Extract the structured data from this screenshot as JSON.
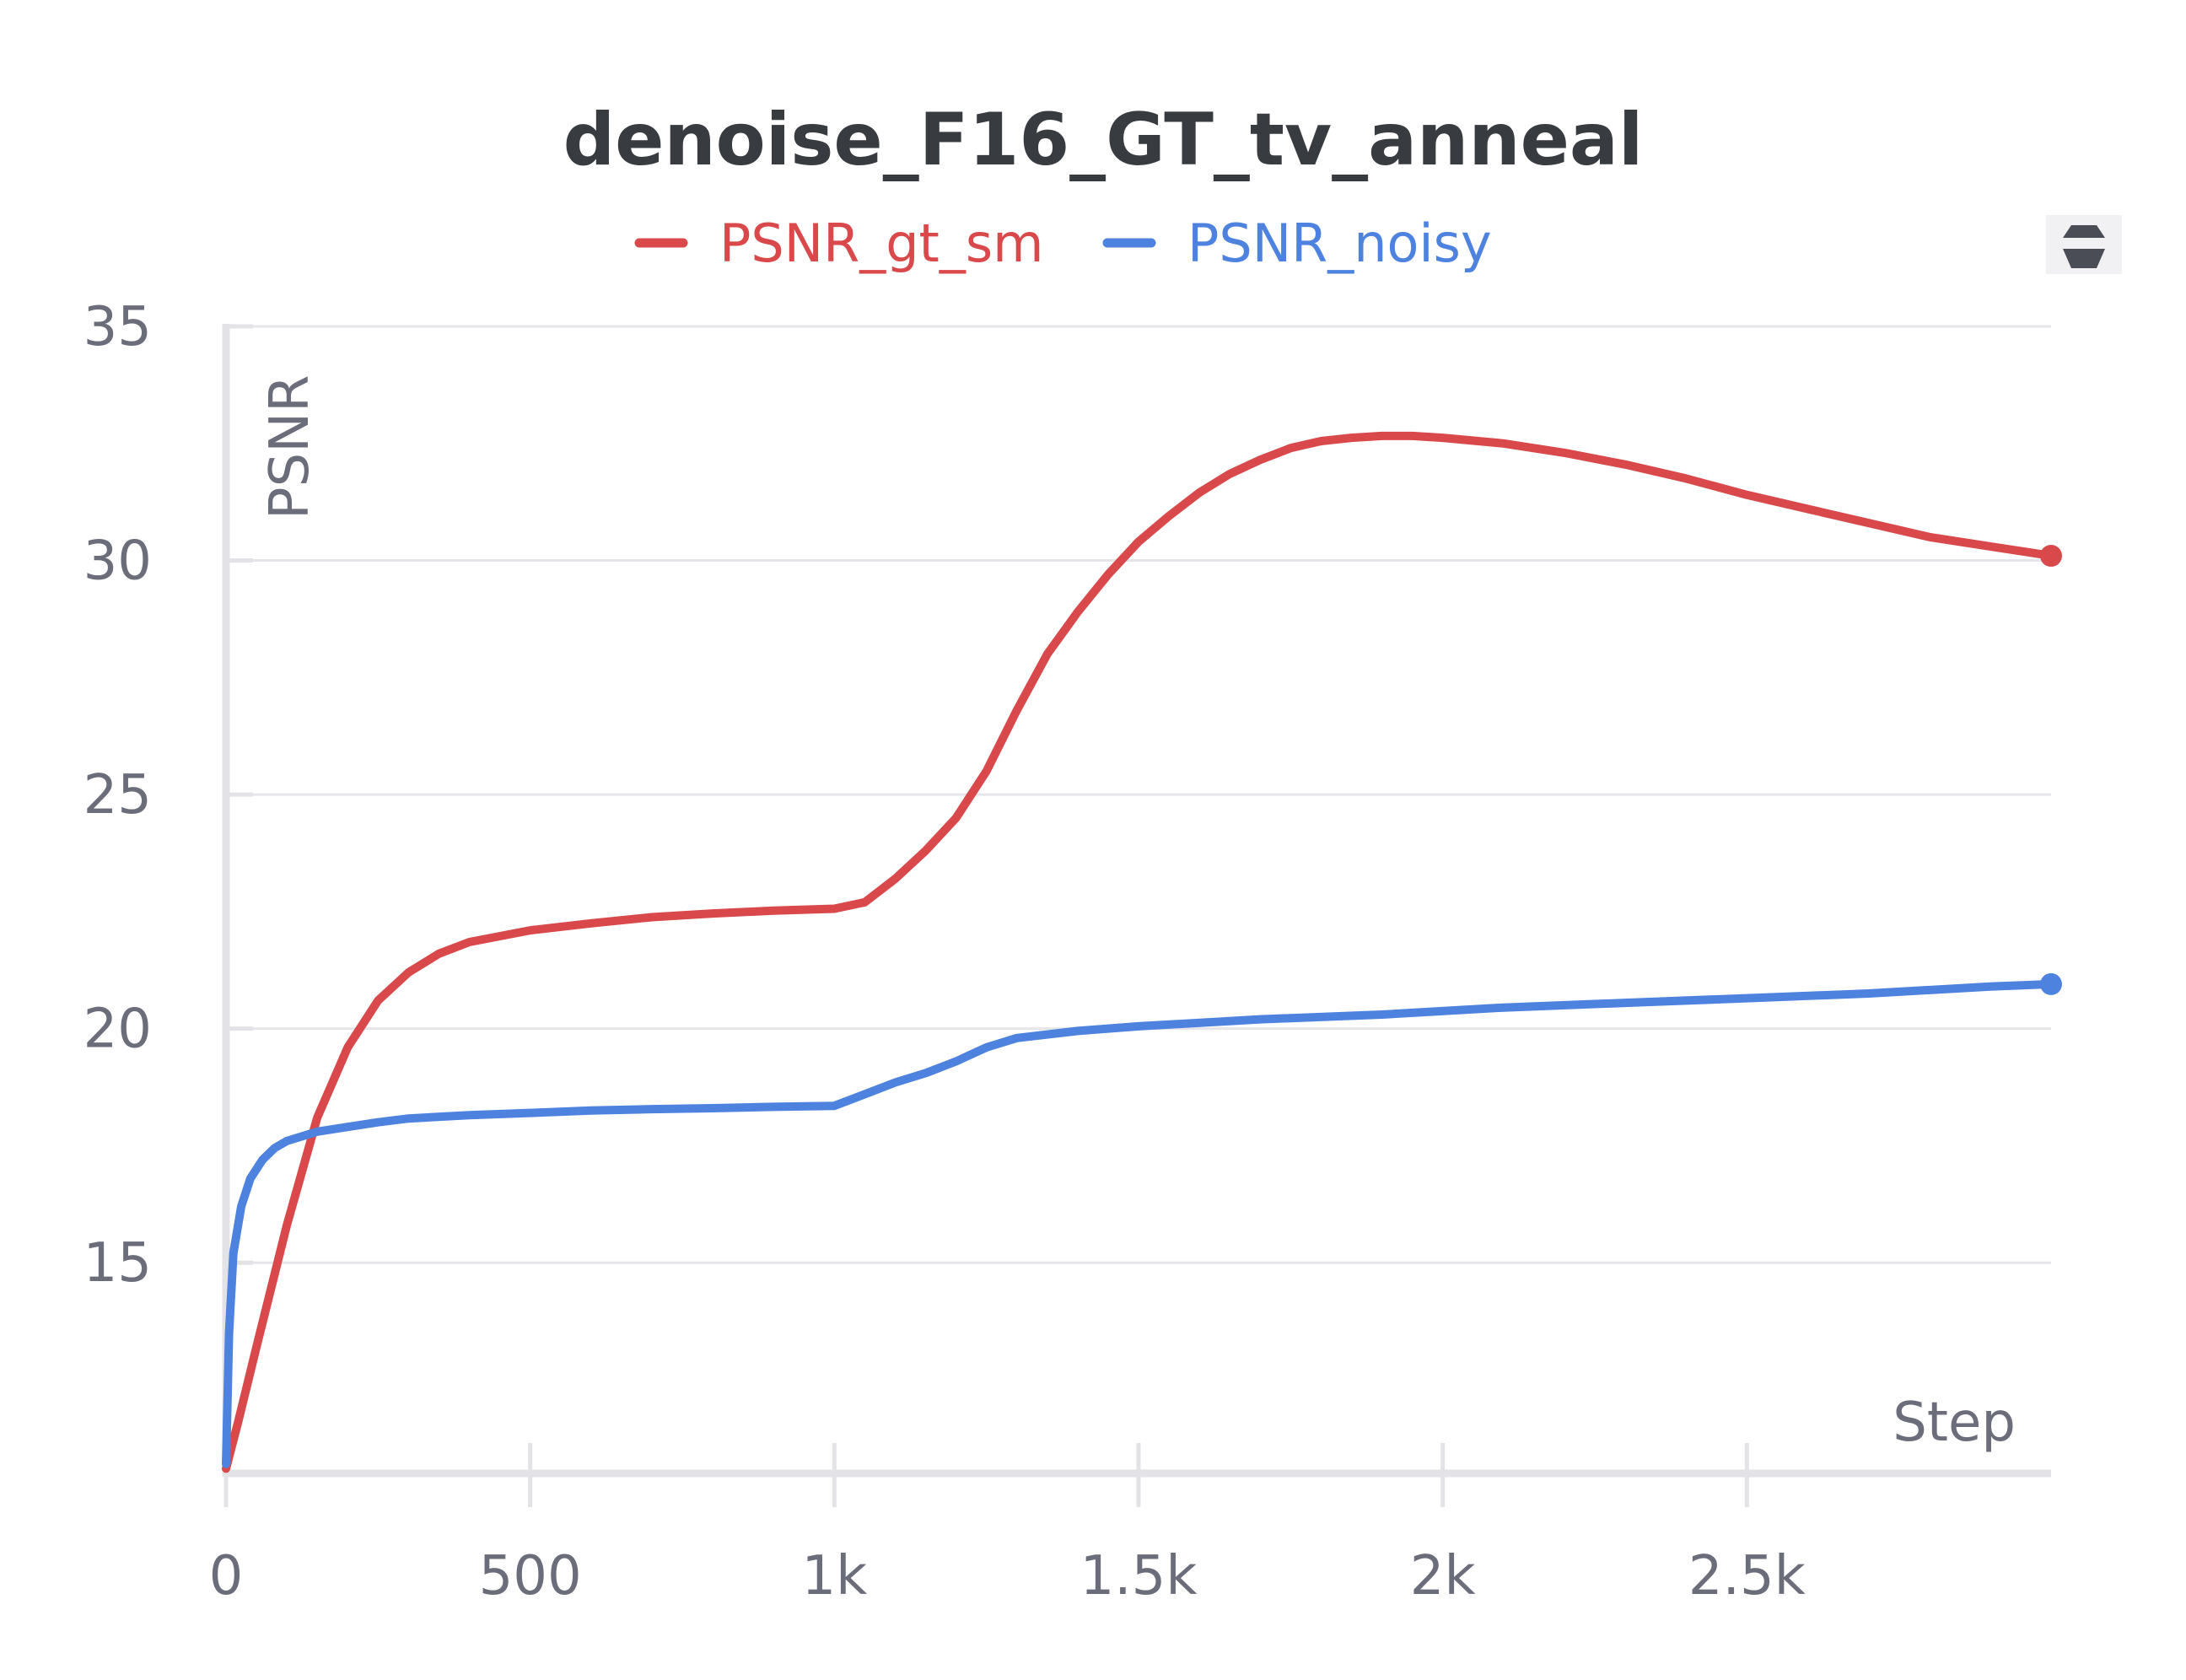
{
  "chart_data": {
    "type": "line",
    "title": "denoise_F16_GT_tv_anneal",
    "xlabel": "Step",
    "ylabel": "PSNR",
    "xlim": [
      0,
      3000
    ],
    "ylim": [
      10.5,
      35
    ],
    "legend_position": "top",
    "grid": true,
    "x_ticks": [
      {
        "value": 0,
        "label": "0"
      },
      {
        "value": 500,
        "label": "500"
      },
      {
        "value": 1000,
        "label": "1k"
      },
      {
        "value": 1500,
        "label": "1.5k"
      },
      {
        "value": 2000,
        "label": "2k"
      },
      {
        "value": 2500,
        "label": "2.5k"
      }
    ],
    "y_ticks": [
      {
        "value": 15,
        "label": "15"
      },
      {
        "value": 20,
        "label": "20"
      },
      {
        "value": 25,
        "label": "25"
      },
      {
        "value": 30,
        "label": "30"
      },
      {
        "value": 35,
        "label": "35"
      }
    ],
    "series": [
      {
        "name": "PSNR_gt_sm",
        "color": "#d9494b",
        "points": [
          [
            0,
            10.6
          ],
          [
            20,
            11.6
          ],
          [
            50,
            13.2
          ],
          [
            100,
            15.8
          ],
          [
            150,
            18.1
          ],
          [
            200,
            19.6
          ],
          [
            250,
            20.6
          ],
          [
            300,
            21.2
          ],
          [
            350,
            21.6
          ],
          [
            400,
            21.85
          ],
          [
            500,
            22.1
          ],
          [
            600,
            22.25
          ],
          [
            700,
            22.38
          ],
          [
            800,
            22.46
          ],
          [
            900,
            22.52
          ],
          [
            1000,
            22.56
          ],
          [
            1050,
            22.7
          ],
          [
            1100,
            23.2
          ],
          [
            1150,
            23.8
          ],
          [
            1200,
            24.5
          ],
          [
            1250,
            25.5
          ],
          [
            1300,
            26.8
          ],
          [
            1350,
            28.0
          ],
          [
            1400,
            28.9
          ],
          [
            1450,
            29.7
          ],
          [
            1500,
            30.4
          ],
          [
            1550,
            30.95
          ],
          [
            1600,
            31.45
          ],
          [
            1650,
            31.85
          ],
          [
            1700,
            32.15
          ],
          [
            1750,
            32.4
          ],
          [
            1800,
            32.55
          ],
          [
            1850,
            32.62
          ],
          [
            1900,
            32.66
          ],
          [
            1950,
            32.66
          ],
          [
            2000,
            32.62
          ],
          [
            2100,
            32.5
          ],
          [
            2200,
            32.3
          ],
          [
            2300,
            32.05
          ],
          [
            2400,
            31.75
          ],
          [
            2500,
            31.4
          ],
          [
            2600,
            31.1
          ],
          [
            2700,
            30.8
          ],
          [
            2800,
            30.5
          ],
          [
            2900,
            30.3
          ],
          [
            3000,
            30.1
          ]
        ]
      },
      {
        "name": "PSNR_noisy",
        "color": "#4d82de",
        "points": [
          [
            0,
            10.7
          ],
          [
            5,
            13.5
          ],
          [
            12,
            15.2
          ],
          [
            25,
            16.2
          ],
          [
            40,
            16.8
          ],
          [
            60,
            17.2
          ],
          [
            80,
            17.45
          ],
          [
            100,
            17.6
          ],
          [
            150,
            17.8
          ],
          [
            200,
            17.9
          ],
          [
            250,
            18.0
          ],
          [
            300,
            18.08
          ],
          [
            400,
            18.15
          ],
          [
            500,
            18.2
          ],
          [
            600,
            18.25
          ],
          [
            700,
            18.28
          ],
          [
            800,
            18.3
          ],
          [
            900,
            18.33
          ],
          [
            1000,
            18.35
          ],
          [
            1050,
            18.6
          ],
          [
            1100,
            18.85
          ],
          [
            1150,
            19.05
          ],
          [
            1200,
            19.3
          ],
          [
            1250,
            19.6
          ],
          [
            1300,
            19.8
          ],
          [
            1400,
            19.95
          ],
          [
            1500,
            20.05
          ],
          [
            1700,
            20.2
          ],
          [
            1900,
            20.3
          ],
          [
            2100,
            20.45
          ],
          [
            2300,
            20.55
          ],
          [
            2500,
            20.65
          ],
          [
            2700,
            20.75
          ],
          [
            2900,
            20.9
          ],
          [
            3000,
            20.95
          ]
        ]
      }
    ]
  }
}
